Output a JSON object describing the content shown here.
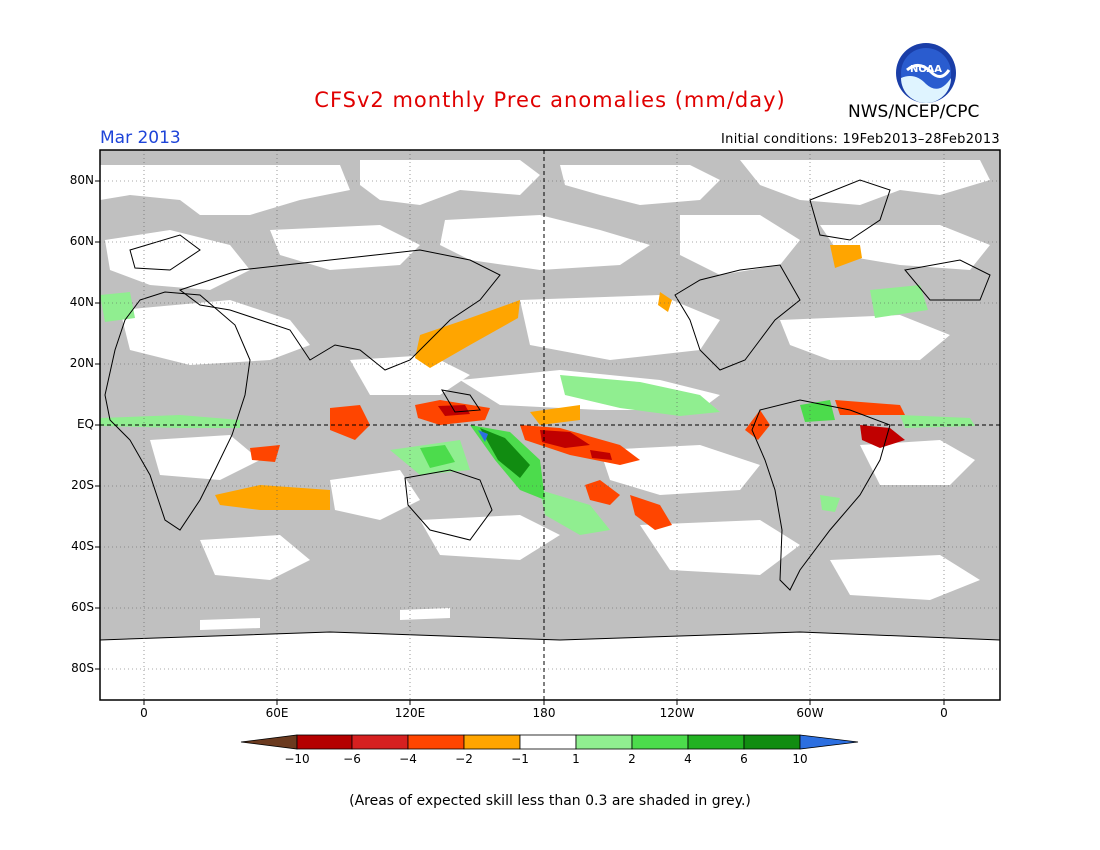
{
  "header": {
    "title": "CFSv2 monthly Prec anomalies (mm/day)",
    "agency": "NWS/NCEP/CPC",
    "logo_text": "NOAA",
    "month": "Mar 2013",
    "initial_conditions": "Initial conditions: 19Feb2013–28Feb2013"
  },
  "map": {
    "projection": "equirectangular",
    "center_longitude": "180",
    "lat_labels": [
      "80N",
      "60N",
      "40N",
      "20N",
      "EQ",
      "20S",
      "40S",
      "60S",
      "80S"
    ],
    "lon_labels": [
      "0",
      "60E",
      "120E",
      "180",
      "120W",
      "60W",
      "0"
    ],
    "gridlines": "dotted",
    "land_color": "#ffffff",
    "low_skill_color": "#c0c0c0",
    "anomaly_regions": [
      {
        "name": "w-pacific-west-dry",
        "class": "-4"
      },
      {
        "name": "central-pacific-dry",
        "class": "-6"
      },
      {
        "name": "spcz-dry",
        "class": "-4"
      },
      {
        "name": "maritime-continent-wet",
        "class": "6"
      },
      {
        "name": "nw-pacific-dry",
        "class": "-2"
      },
      {
        "name": "nordeste-dry",
        "class": "-6"
      },
      {
        "name": "indian-ocean-dry",
        "class": "-4"
      },
      {
        "name": "itcz-wet",
        "class": "2"
      }
    ]
  },
  "colorbar": {
    "labels": [
      "−10",
      "−6",
      "−4",
      "−2",
      "−1",
      "1",
      "2",
      "4",
      "6",
      "10"
    ],
    "colors": [
      "#6b3a1f",
      "#b40000",
      "#d62020",
      "#ff4500",
      "#ffa500",
      "#ffffff",
      "#90ee90",
      "#4cdc4c",
      "#22b222",
      "#118c11",
      "#2c6fe0"
    ]
  },
  "footnote": "(Areas of expected skill less than 0.3 are shaded in grey.)"
}
